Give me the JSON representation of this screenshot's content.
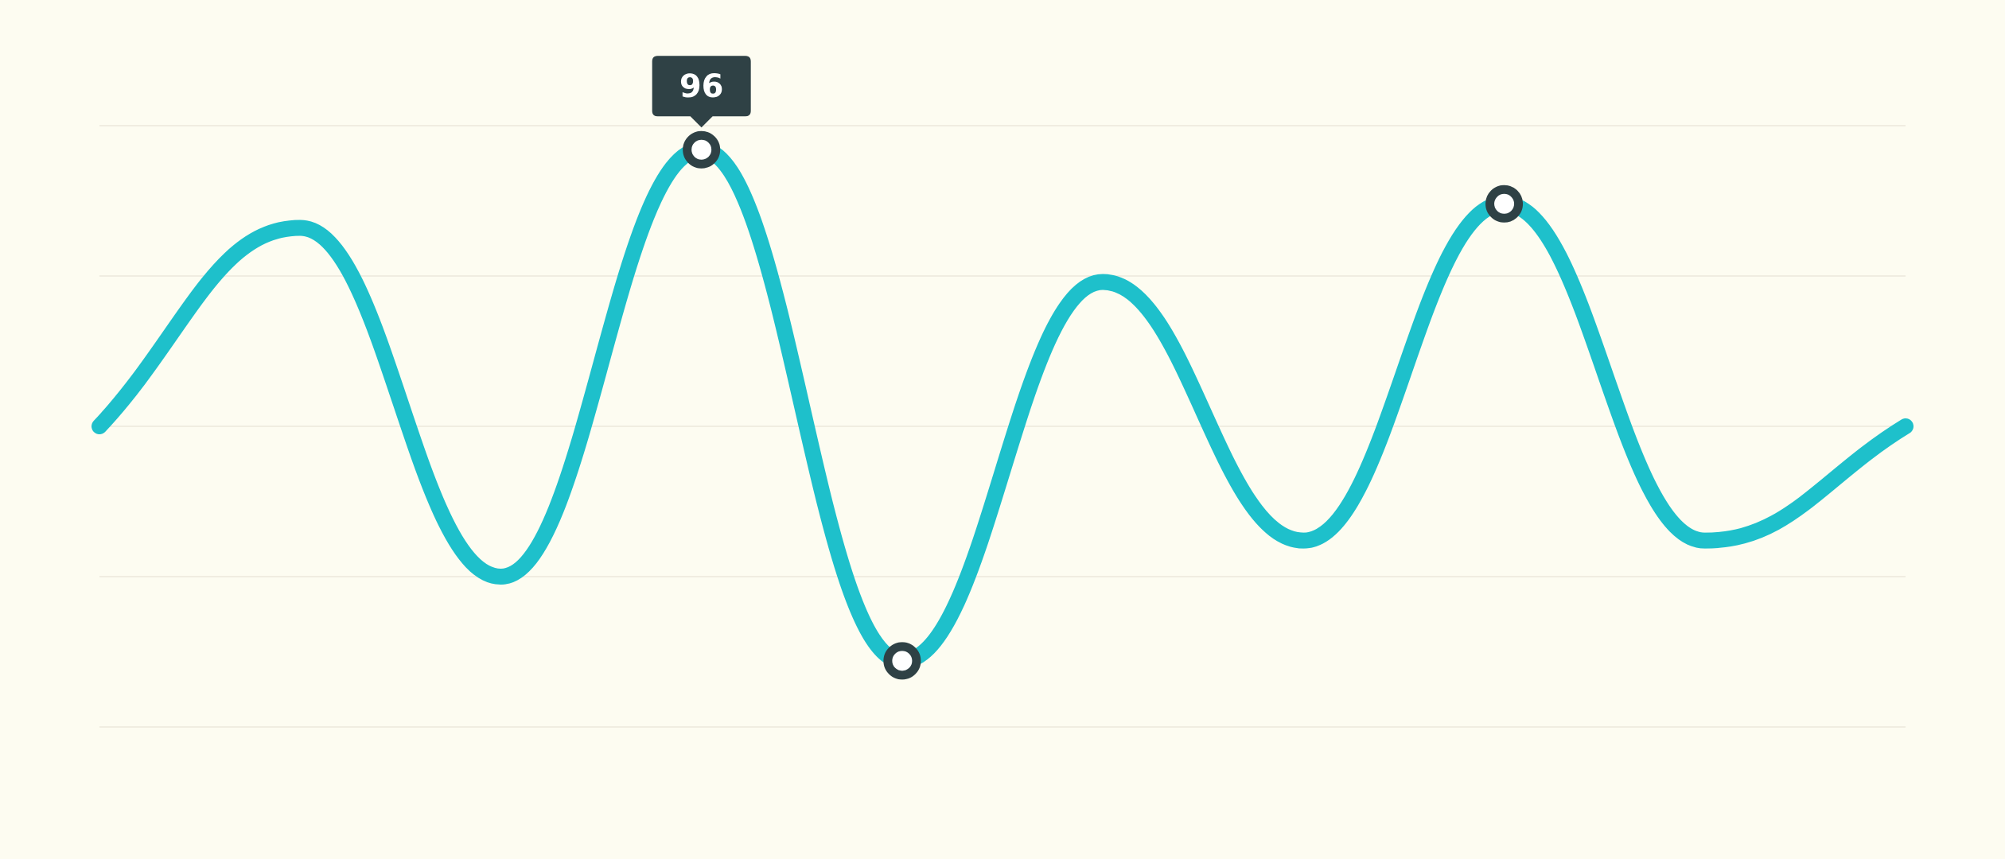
{
  "colors": {
    "background": "#fdfcf1",
    "line": "#1ec0cb",
    "marker": "#2f4145",
    "gridline": "#ece8dc",
    "tooltip": "#2f4145"
  },
  "chart_data": {
    "type": "line",
    "title": "",
    "xlabel": "",
    "ylabel": "",
    "ylim": [
      0,
      100
    ],
    "grid": true,
    "x": [
      0,
      1,
      2,
      3,
      4,
      5,
      6,
      7,
      8,
      9
    ],
    "series": [
      {
        "values": [
          50,
          83,
          25,
          96,
          11,
          74,
          31,
          87,
          31,
          50
        ]
      }
    ],
    "highlighted_points": [
      {
        "index": 3,
        "value": 96,
        "tooltip": "96"
      },
      {
        "index": 4,
        "value": 11
      },
      {
        "index": 7,
        "value": 87
      }
    ]
  }
}
